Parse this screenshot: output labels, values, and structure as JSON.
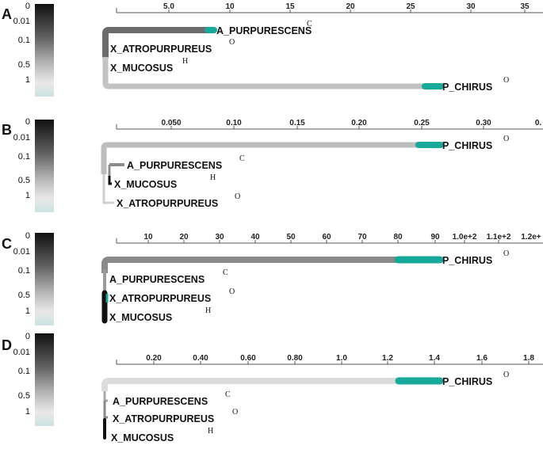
{
  "color_scale": {
    "labels": [
      "0",
      "0.01",
      "0.1",
      "0.5",
      "1"
    ],
    "gradient": [
      "#1a1a1a",
      "#7a7a7a",
      "#cfcfcf",
      "#e6e6e6",
      "#cfe3e3"
    ]
  },
  "colors": {
    "teal": "#17a99a",
    "axis": "#444444"
  },
  "panels": [
    {
      "letter": "A",
      "axis_ticks": [
        "5.0",
        "10",
        "15",
        "20",
        "25",
        "30",
        "35"
      ],
      "branches": [
        {
          "leaf": "A_PURPURESCENS",
          "sup": "C",
          "color": "#6b6b6b"
        },
        {
          "leaf": "X_ATROPURPUREUS",
          "sup": "O",
          "color": "#6b6b6b"
        },
        {
          "leaf": "X_MUCOSUS",
          "sup": "H",
          "color": "#bfbfbf"
        },
        {
          "leaf": "P_CHIRUS",
          "sup": "O",
          "color": "#bfbfbf"
        }
      ]
    },
    {
      "letter": "B",
      "axis_ticks": [
        "0.050",
        "0.10",
        "0.15",
        "0.20",
        "0.25",
        "0.30",
        "0."
      ],
      "branches": [
        {
          "leaf": "P_CHIRUS",
          "sup": "O",
          "color": "#bdbdbd"
        },
        {
          "leaf": "A_PURPURESCENS",
          "sup": "C",
          "color": "#8c8c8c"
        },
        {
          "leaf": "X_MUCOSUS",
          "sup": "H",
          "color": "#111111"
        },
        {
          "leaf": "X_ATROPURPUREUS",
          "sup": "O",
          "color": "#cfcfcf"
        }
      ]
    },
    {
      "letter": "C",
      "axis_ticks": [
        "10",
        "20",
        "30",
        "40",
        "50",
        "60",
        "70",
        "80",
        "90",
        "1.0e+2",
        "1.1e+2",
        "1.2e+"
      ],
      "branches": [
        {
          "leaf": "P_CHIRUS",
          "sup": "O",
          "color": "#8a8a8a"
        },
        {
          "leaf": "A_PURPURESCENS",
          "sup": "C",
          "color": "#9a9a9a"
        },
        {
          "leaf": "X_ATROPURPUREUS",
          "sup": "O",
          "color": "#111111"
        },
        {
          "leaf": "X_MUCOSUS",
          "sup": "H",
          "color": "#111111"
        }
      ]
    },
    {
      "letter": "D",
      "axis_ticks": [
        "0.20",
        "0.40",
        "0.60",
        "0.80",
        "1.0",
        "1.2",
        "1.4",
        "1.6",
        "1.8"
      ],
      "branches": [
        {
          "leaf": "P_CHIRUS",
          "sup": "O",
          "color": "#dcdcdc"
        },
        {
          "leaf": "A_PURPURESCENS",
          "sup": "C",
          "color": "#a8a8a8"
        },
        {
          "leaf": "X_ATROPURPUREUS",
          "sup": "O",
          "color": "#8a8a8a"
        },
        {
          "leaf": "X_MUCOSUS",
          "sup": "H",
          "color": "#111111"
        }
      ]
    }
  ]
}
